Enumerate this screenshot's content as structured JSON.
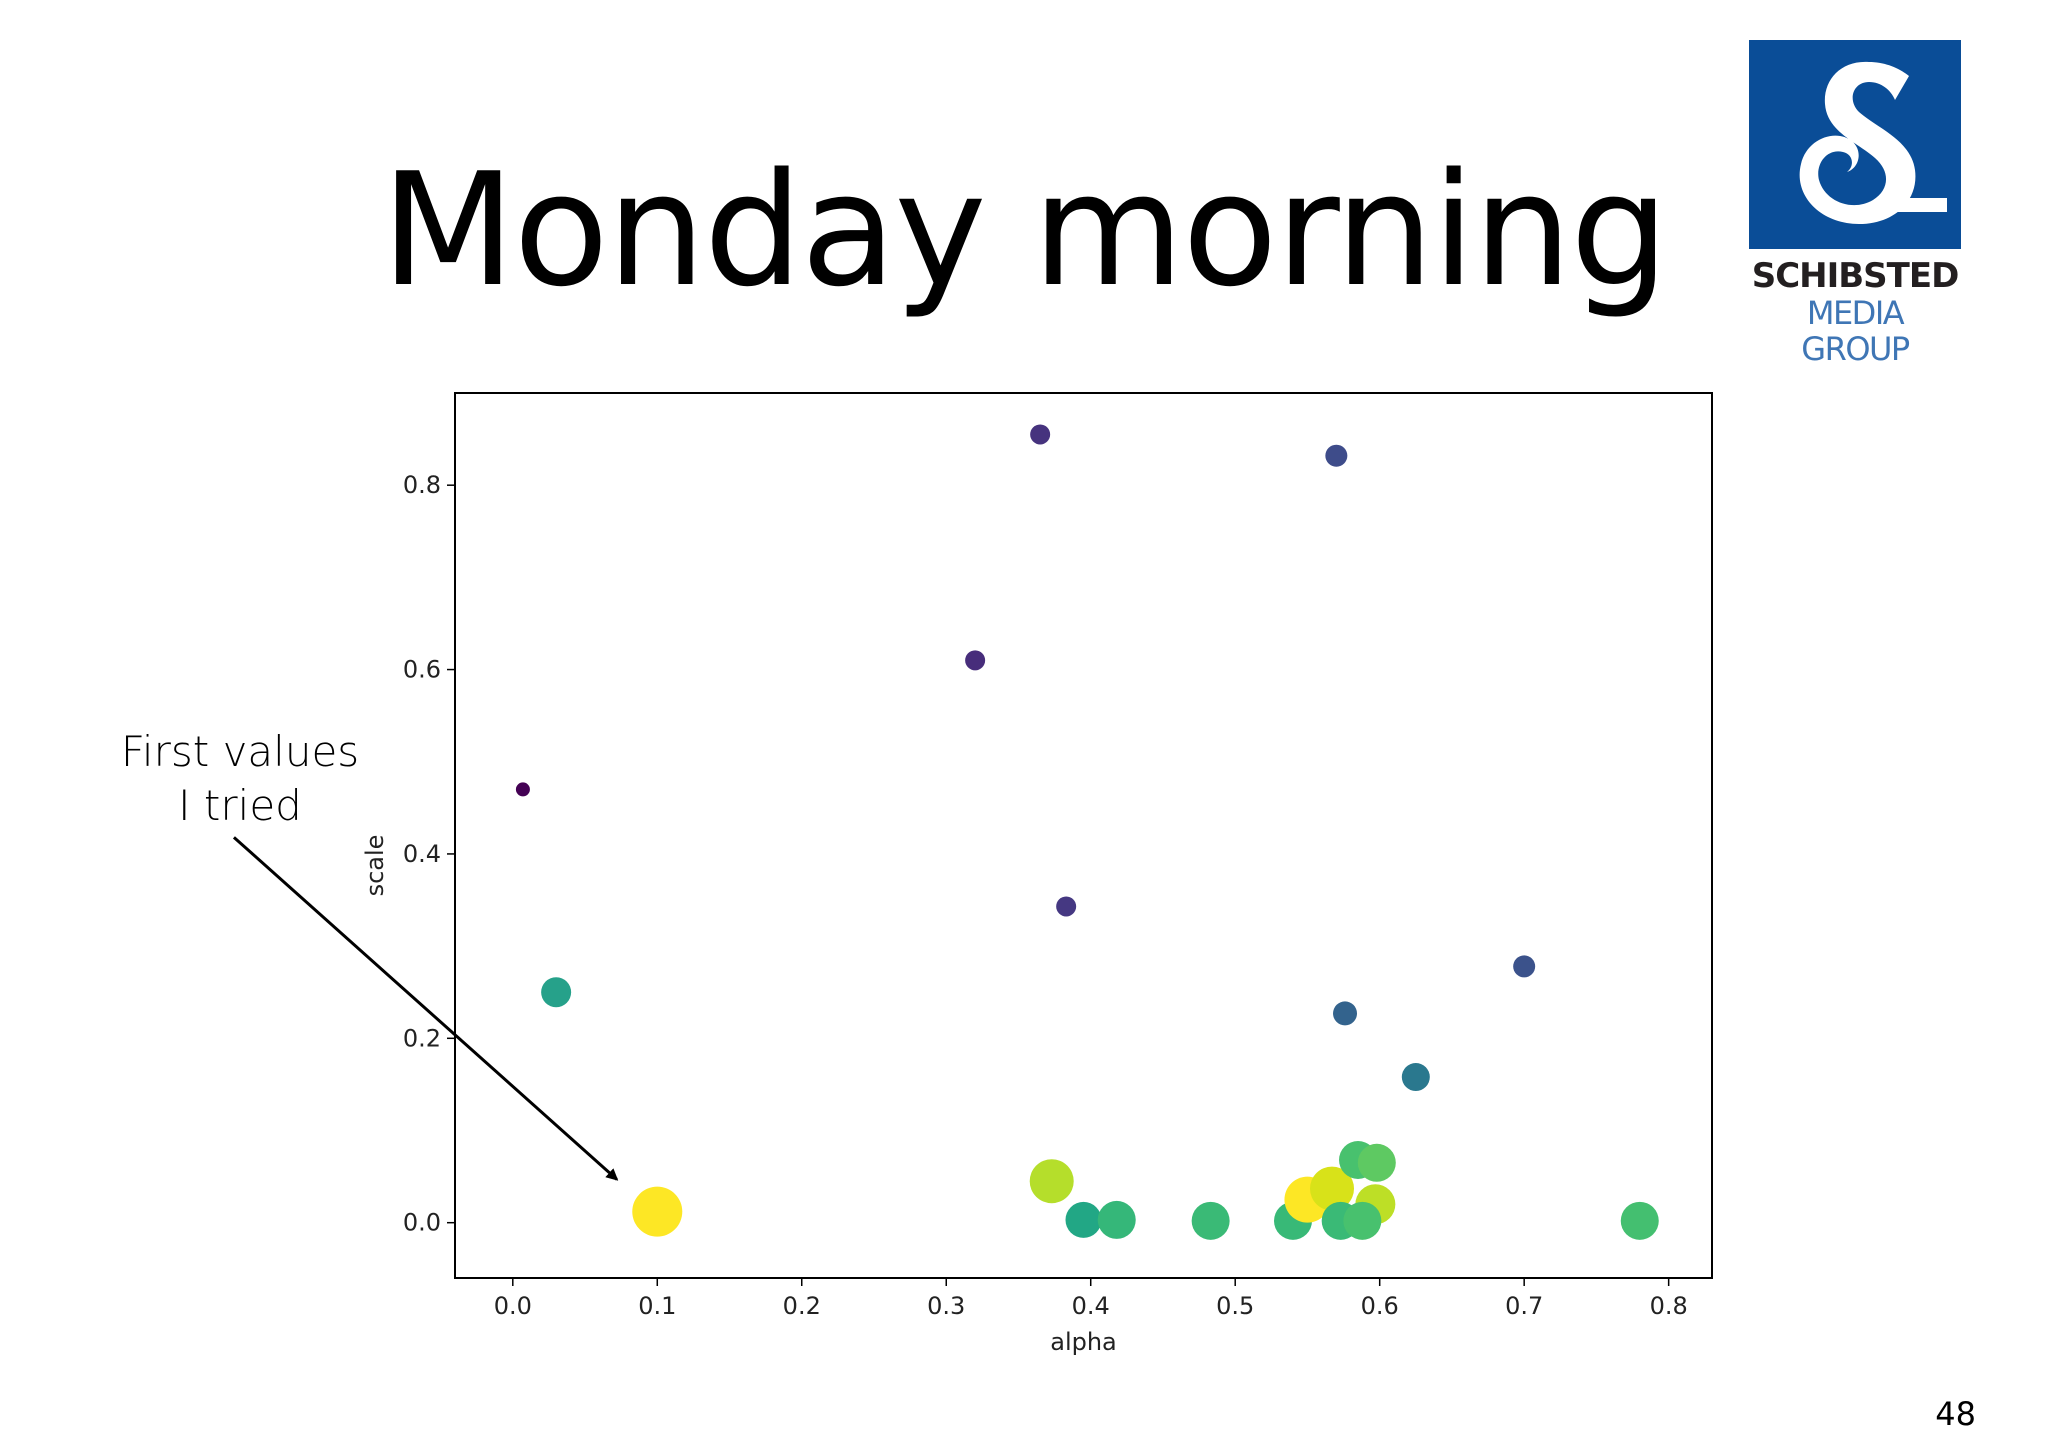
{
  "slide": {
    "title": "Monday morning",
    "annotation_lines": [
      "First values",
      "I tried"
    ],
    "page_number": "48",
    "logo": {
      "brand": "SCHIBSTED",
      "sub": "MEDIA GROUP",
      "color": "#0a4d97"
    }
  },
  "chart_data": {
    "type": "scatter",
    "xlabel": "alpha",
    "ylabel": "scale",
    "xlim": [
      -0.04,
      0.83
    ],
    "ylim": [
      -0.06,
      0.9
    ],
    "xticks": [
      "0.0",
      "0.1",
      "0.2",
      "0.3",
      "0.4",
      "0.5",
      "0.6",
      "0.7",
      "0.8"
    ],
    "yticks": [
      "0.0",
      "0.2",
      "0.4",
      "0.6",
      "0.8"
    ],
    "grid": false,
    "colormap": "viridis",
    "points": [
      {
        "x": 0.365,
        "y": 0.855,
        "r": 10,
        "color": "#46337e"
      },
      {
        "x": 0.57,
        "y": 0.832,
        "r": 11,
        "color": "#3e4c8a"
      },
      {
        "x": 0.32,
        "y": 0.61,
        "r": 10,
        "color": "#472d7b"
      },
      {
        "x": 0.007,
        "y": 0.47,
        "r": 7,
        "color": "#440154"
      },
      {
        "x": 0.383,
        "y": 0.343,
        "r": 10,
        "color": "#453882"
      },
      {
        "x": 0.7,
        "y": 0.278,
        "r": 11,
        "color": "#3b528b"
      },
      {
        "x": 0.576,
        "y": 0.227,
        "r": 12,
        "color": "#33638d"
      },
      {
        "x": 0.03,
        "y": 0.25,
        "r": 15,
        "color": "#26a18a"
      },
      {
        "x": 0.625,
        "y": 0.158,
        "r": 14,
        "color": "#2a788e"
      },
      {
        "x": 0.1,
        "y": 0.012,
        "r": 25,
        "color": "#fde725"
      },
      {
        "x": 0.373,
        "y": 0.045,
        "r": 22,
        "color": "#b5de2b"
      },
      {
        "x": 0.395,
        "y": 0.003,
        "r": 18,
        "color": "#22a785"
      },
      {
        "x": 0.418,
        "y": 0.003,
        "r": 19,
        "color": "#35b779"
      },
      {
        "x": 0.483,
        "y": 0.002,
        "r": 19,
        "color": "#3aba76"
      },
      {
        "x": 0.54,
        "y": 0.002,
        "r": 19,
        "color": "#38b977"
      },
      {
        "x": 0.55,
        "y": 0.025,
        "r": 23,
        "color": "#fde725"
      },
      {
        "x": 0.567,
        "y": 0.037,
        "r": 22,
        "color": "#d8e219"
      },
      {
        "x": 0.585,
        "y": 0.068,
        "r": 19,
        "color": "#48c16e"
      },
      {
        "x": 0.598,
        "y": 0.065,
        "r": 19,
        "color": "#5ec962"
      },
      {
        "x": 0.597,
        "y": 0.02,
        "r": 20,
        "color": "#bddf26"
      },
      {
        "x": 0.573,
        "y": 0.002,
        "r": 19,
        "color": "#3aba76"
      },
      {
        "x": 0.588,
        "y": 0.002,
        "r": 19,
        "color": "#48c16e"
      },
      {
        "x": 0.78,
        "y": 0.002,
        "r": 19,
        "color": "#44bf70"
      }
    ],
    "arrow": {
      "from": [
        -0.193,
        0.418
      ],
      "to": [
        0.072,
        0.047
      ]
    }
  }
}
